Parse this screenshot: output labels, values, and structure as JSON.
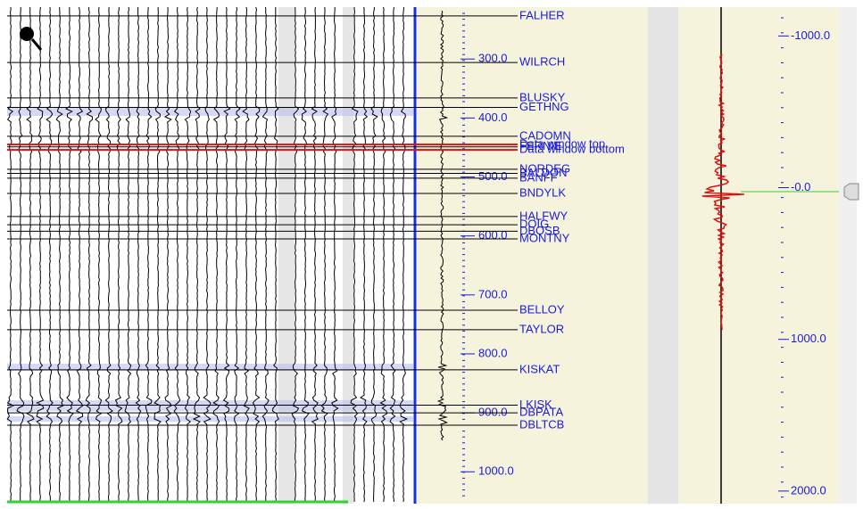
{
  "depth_axis": {
    "range": [
      212,
      1054
    ],
    "ticks": [
      {
        "value": 300,
        "label": "300.0"
      },
      {
        "value": 400,
        "label": "400.0"
      },
      {
        "value": 500,
        "label": "500.0"
      },
      {
        "value": 600,
        "label": "600.0"
      },
      {
        "value": 700,
        "label": "700.0"
      },
      {
        "value": 800,
        "label": "800.0"
      },
      {
        "value": 900,
        "label": "900.0"
      },
      {
        "value": 1000,
        "label": "1000.0"
      }
    ]
  },
  "horizons": [
    {
      "name": "FALHER",
      "depth": 227
    },
    {
      "name": "WILRCH",
      "depth": 306
    },
    {
      "name": "BLUSKY",
      "depth": 366
    },
    {
      "name": "GETHNG",
      "depth": 382
    },
    {
      "name": "CADOMN",
      "depth": 431
    },
    {
      "name": "Data window top",
      "depth": 445
    },
    {
      "name": "FERNIE",
      "depth": 449
    },
    {
      "name": "Data window bottom",
      "depth": 454
    },
    {
      "name": "NORDEG",
      "depth": 487
    },
    {
      "name": "BALDON",
      "depth": 494
    },
    {
      "name": "BANFF",
      "depth": 502
    },
    {
      "name": "BNDYLK",
      "depth": 528
    },
    {
      "name": "HALFWY",
      "depth": 567
    },
    {
      "name": "DOIG",
      "depth": 581
    },
    {
      "name": "DBOSB",
      "depth": 592
    },
    {
      "name": "MONTNY",
      "depth": 605
    },
    {
      "name": "BELLOY",
      "depth": 726
    },
    {
      "name": "TAYLOR",
      "depth": 759
    },
    {
      "name": "KISKAT",
      "depth": 827
    },
    {
      "name": "LKISK",
      "depth": 887
    },
    {
      "name": "DBPATA",
      "depth": 900
    },
    {
      "name": "DBLTCB",
      "depth": 921
    }
  ],
  "time_axis": {
    "range": [
      -1190,
      2083
    ],
    "ticks": [
      {
        "value": -1000,
        "label": "-1000.0"
      },
      {
        "value": 0,
        "label": "-0.0"
      },
      {
        "value": 1000,
        "label": "1000.0"
      },
      {
        "value": 2000,
        "label": "2000.0"
      }
    ]
  }
}
